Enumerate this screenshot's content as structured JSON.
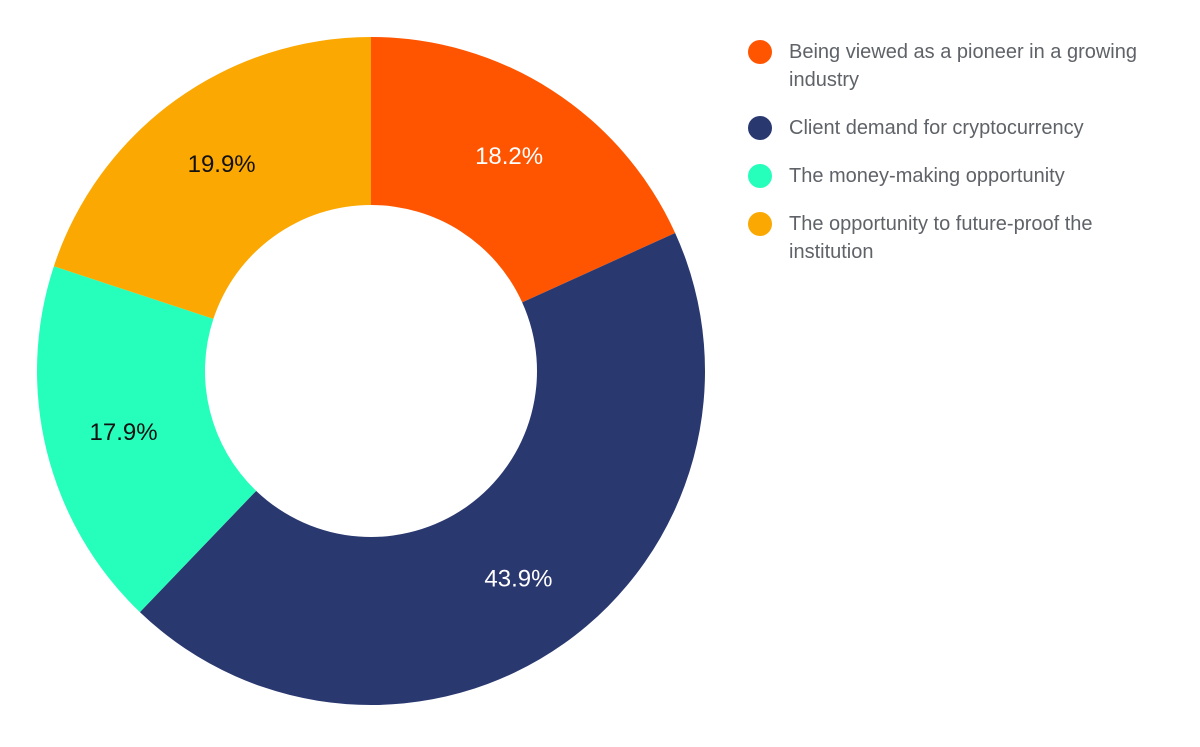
{
  "chart_data": {
    "type": "pie",
    "title": "",
    "donut": true,
    "legend_position": "right",
    "slices": [
      {
        "label": "Being viewed as a pioneer in a growing industry",
        "value": 18.2,
        "display": "18.2%",
        "color": "#FF5500",
        "text_color": "#ffffff"
      },
      {
        "label": "Client demand for cryptocurrency",
        "value": 43.9,
        "display": "43.9%",
        "color": "#2A3870",
        "text_color": "#ffffff"
      },
      {
        "label": "The money-making opportunity",
        "value": 17.9,
        "display": "17.9%",
        "color": "#26FFBB",
        "text_color": "#111111"
      },
      {
        "label": "The opportunity to future-proof the institution",
        "value": 19.9,
        "display": "19.9%",
        "color": "#FBA802",
        "text_color": "#111111"
      }
    ]
  }
}
